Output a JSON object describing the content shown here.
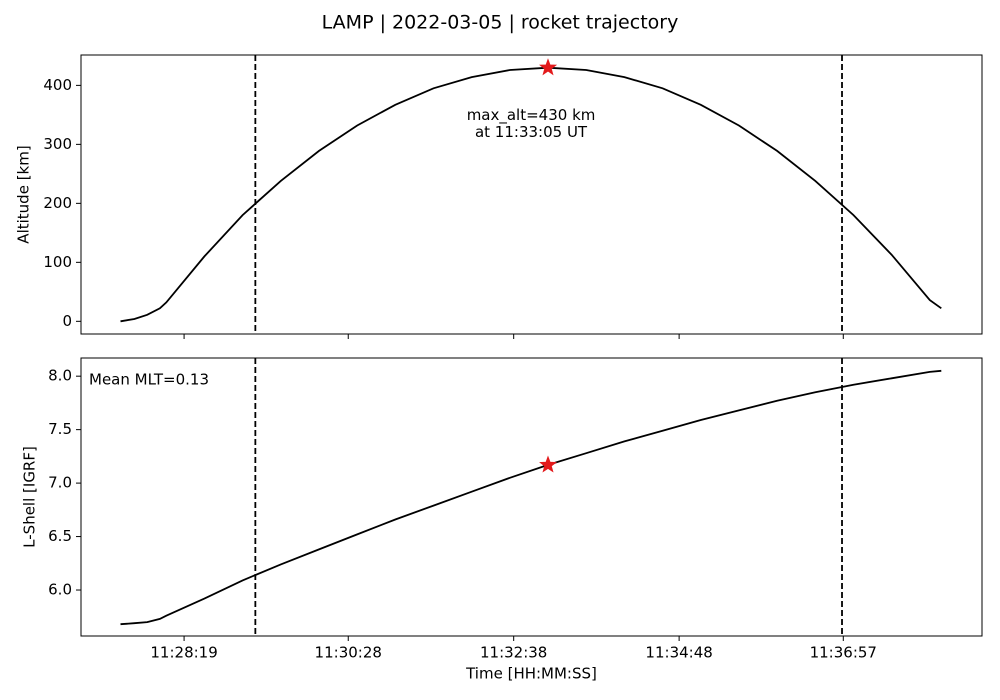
{
  "title": "LAMP | 2022-03-05 | rocket trajectory",
  "chart_data": [
    {
      "type": "line",
      "ylabel": "Altitude [km]",
      "x": [
        "11:27:29",
        "11:27:40",
        "11:27:50",
        "11:28:00",
        "11:28:05",
        "11:28:35",
        "11:29:05",
        "11:29:35",
        "11:30:05",
        "11:30:35",
        "11:31:05",
        "11:31:35",
        "11:32:05",
        "11:32:35",
        "11:33:05",
        "11:33:35",
        "11:34:05",
        "11:34:35",
        "11:35:05",
        "11:35:35",
        "11:36:05",
        "11:36:35",
        "11:37:05",
        "11:37:35",
        "11:38:05",
        "11:38:14"
      ],
      "values": [
        0,
        4,
        11,
        22,
        32,
        110,
        180,
        238,
        289,
        332,
        367,
        395,
        414,
        426,
        430,
        426,
        414,
        395,
        367,
        332,
        289,
        238,
        180,
        113,
        36,
        22
      ],
      "color": "#000000",
      "xlim": [
        "11:26:58",
        "11:38:46"
      ],
      "xticks": [
        "11:28:19",
        "11:30:28",
        "11:32:38",
        "11:34:48",
        "11:36:57"
      ],
      "xticklabels": false,
      "ylim": [
        -21.5,
        451.5
      ],
      "yticks": [
        0,
        100,
        200,
        300,
        400
      ],
      "vlines": [
        "11:29:15",
        "11:36:56"
      ],
      "marker": {
        "x": "11:33:05",
        "value": 430,
        "color": "#e31a1c"
      },
      "annotation": [
        "max_alt=430 km",
        "at 11:33:05 UT"
      ]
    },
    {
      "type": "line",
      "ylabel": "L-Shell [IGRF]",
      "xlabel": "Time [HH:MM:SS]",
      "x": [
        "11:27:29",
        "11:27:40",
        "11:27:50",
        "11:28:00",
        "11:28:05",
        "11:28:35",
        "11:29:05",
        "11:29:35",
        "11:30:05",
        "11:30:35",
        "11:31:05",
        "11:31:35",
        "11:32:05",
        "11:32:35",
        "11:33:05",
        "11:33:35",
        "11:34:05",
        "11:34:35",
        "11:35:05",
        "11:35:35",
        "11:36:05",
        "11:36:35",
        "11:37:05",
        "11:37:35",
        "11:38:05",
        "11:38:14"
      ],
      "values": [
        5.68,
        5.69,
        5.7,
        5.73,
        5.76,
        5.92,
        6.09,
        6.24,
        6.38,
        6.52,
        6.66,
        6.79,
        6.92,
        7.05,
        7.17,
        7.28,
        7.39,
        7.49,
        7.59,
        7.68,
        7.77,
        7.85,
        7.92,
        7.98,
        8.04,
        8.05
      ],
      "color": "#000000",
      "xlim": [
        "11:26:58",
        "11:38:46"
      ],
      "xticks": [
        "11:28:19",
        "11:30:28",
        "11:32:38",
        "11:34:48",
        "11:36:57"
      ],
      "xticklabels": true,
      "ylim": [
        5.57,
        8.17
      ],
      "yticks": [
        {
          "value": 6,
          "label": "6.0"
        },
        {
          "value": 6.5,
          "label": "6.5"
        },
        {
          "value": 7,
          "label": "7.0"
        },
        {
          "value": 7.5,
          "label": "7.5"
        },
        {
          "value": 8,
          "label": "8.0"
        }
      ],
      "vlines": [
        "11:29:15",
        "11:36:56"
      ],
      "marker": {
        "x": "11:33:05",
        "value": 7.17,
        "color": "#e31a1c"
      },
      "annotation": [
        "Mean MLT=0.13"
      ]
    }
  ]
}
